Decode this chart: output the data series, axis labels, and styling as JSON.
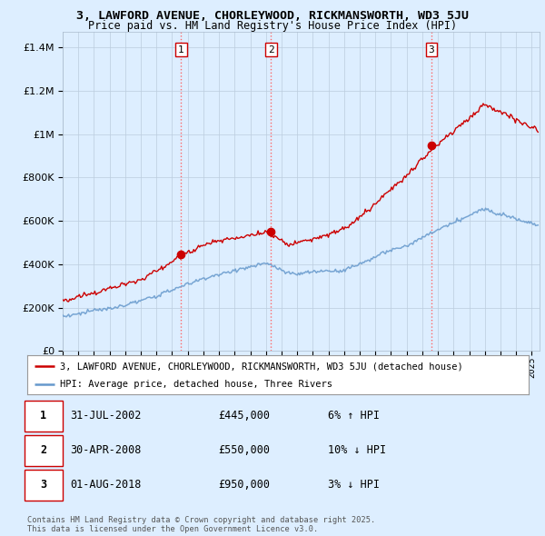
{
  "title1": "3, LAWFORD AVENUE, CHORLEYWOOD, RICKMANSWORTH, WD3 5JU",
  "title2": "Price paid vs. HM Land Registry's House Price Index (HPI)",
  "ytick_vals": [
    0,
    200000,
    400000,
    600000,
    800000,
    1000000,
    1200000,
    1400000
  ],
  "ylim": [
    0,
    1470000
  ],
  "xlim_start": 1995.0,
  "xlim_end": 2025.5,
  "sale_dates": [
    2002.58,
    2008.33,
    2018.58
  ],
  "sale_prices": [
    445000,
    550000,
    950000
  ],
  "sale_labels": [
    "1",
    "2",
    "3"
  ],
  "vline_color": "#ff6666",
  "vline_style": ":",
  "sale_dot_color": "#cc0000",
  "hpi_line_color": "#6699cc",
  "price_line_color": "#cc0000",
  "legend_label1": "3, LAWFORD AVENUE, CHORLEYWOOD, RICKMANSWORTH, WD3 5JU (detached house)",
  "legend_label2": "HPI: Average price, detached house, Three Rivers",
  "table_entries": [
    {
      "label": "1",
      "date": "31-JUL-2002",
      "price": "£445,000",
      "change": "6% ↑ HPI"
    },
    {
      "label": "2",
      "date": "30-APR-2008",
      "price": "£550,000",
      "change": "10% ↓ HPI"
    },
    {
      "label": "3",
      "date": "01-AUG-2018",
      "price": "£950,000",
      "change": "3% ↓ HPI"
    }
  ],
  "footnote": "Contains HM Land Registry data © Crown copyright and database right 2025.\nThis data is licensed under the Open Government Licence v3.0.",
  "bg_color": "#ddeeff",
  "plot_bg_color": "#ddeeff",
  "grid_color": "#bbccdd",
  "legend_box_color": "#ffffff"
}
